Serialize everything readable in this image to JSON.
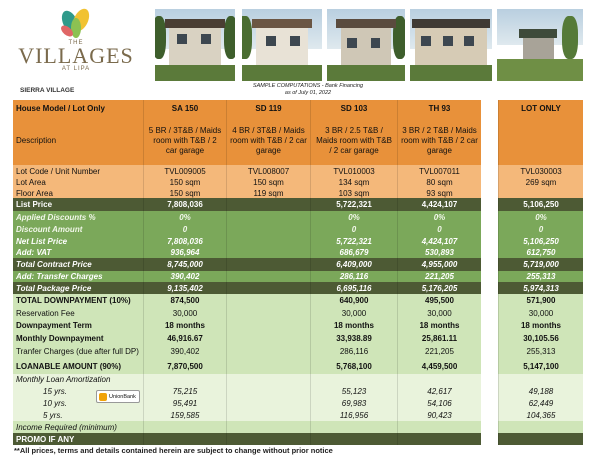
{
  "brand": {
    "the": "THE",
    "name": "VILLAGES",
    "location": "AT LIPA",
    "project": "SIERRA VILLAGE"
  },
  "subtitle": {
    "line1": "SAMPLE COMPUTATIONS - Bank Financing",
    "line2": "as of July 01, 2022"
  },
  "colors": {
    "header": "#e8913a",
    "light_orange": "#f4b87a",
    "green": "#7ba85a",
    "light_green": "#cfe5b8",
    "dark_olive": "#4d5a34",
    "pale": "#e9f3dc"
  },
  "columns": [
    "House Model / Lot Only",
    "SA 150",
    "SD 119",
    "SD 103",
    "TH 93",
    "LOT ONLY"
  ],
  "rows": [
    {
      "label": "Description",
      "values": [
        "5 BR / 3T&B / Maids room with T&B / 2 car garage",
        "4 BR / 3T&B / Maids room with T&B / 2 car garage",
        "3 BR / 2.5 T&B / Maids room with T&B / 2 car garage",
        "3 BR / 2 T&B / Maids room with T&B / 2 car garage",
        ""
      ]
    },
    {
      "label": "Lot Code / Unit Number",
      "values": [
        "TVL009005",
        "TVL008007",
        "TVL010003",
        "TVL007011",
        "TVL030003"
      ]
    },
    {
      "label": "Lot Area",
      "values": [
        "150 sqm",
        "150 sqm",
        "134 sqm",
        "80 sqm",
        "269 sqm"
      ]
    },
    {
      "label": "Floor Area",
      "values": [
        "150 sqm",
        "119 sqm",
        "103 sqm",
        "93 sqm",
        ""
      ]
    },
    {
      "label": "List Price",
      "values": [
        "7,808,036",
        "",
        "5,722,321",
        "4,424,107",
        "5,106,250"
      ]
    },
    {
      "label": "Applied Discounts %",
      "values": [
        "0%",
        "",
        "0%",
        "0%",
        "0%"
      ]
    },
    {
      "label": "Discount Amount",
      "values": [
        "0",
        "",
        "0",
        "0",
        "0"
      ]
    },
    {
      "label": "Net List Price",
      "values": [
        "7,808,036",
        "",
        "5,722,321",
        "4,424,107",
        "5,106,250"
      ]
    },
    {
      "label": "Add: VAT",
      "values": [
        "936,964",
        "",
        "686,679",
        "530,893",
        "612,750"
      ]
    },
    {
      "label": "Total Contract Price",
      "values": [
        "8,745,000",
        "",
        "6,409,000",
        "4,955,000",
        "5,719,000"
      ]
    },
    {
      "label": "Add: Transfer Charges",
      "values": [
        "390,402",
        "",
        "286,116",
        "221,205",
        "255,313"
      ]
    },
    {
      "label": "Total Package Price",
      "values": [
        "9,135,402",
        "",
        "6,695,116",
        "5,176,205",
        "5,974,313"
      ]
    },
    {
      "label": "TOTAL DOWNPAYMENT (10%)",
      "values": [
        "874,500",
        "",
        "640,900",
        "495,500",
        "571,900"
      ]
    },
    {
      "label": "Reservation Fee",
      "values": [
        "30,000",
        "",
        "30,000",
        "30,000",
        "30,000"
      ]
    },
    {
      "label": "Downpayment Term",
      "values": [
        "18 months",
        "",
        "18 months",
        "18 months",
        "18 months"
      ]
    },
    {
      "label": "Monthly Downpayment",
      "values": [
        "46,916.67",
        "",
        "33,938.89",
        "25,861.11",
        "30,105.56"
      ]
    },
    {
      "label": "Tranfer Charges (due after full DP)",
      "values": [
        "390,402",
        "",
        "286,116",
        "221,205",
        "255,313"
      ]
    },
    {
      "label": "LOANABLE AMOUNT (90%)",
      "values": [
        "7,870,500",
        "",
        "5,768,100",
        "4,459,500",
        "5,147,100"
      ]
    },
    {
      "label": "Monthly Loan Amortization",
      "values": [
        "",
        "",
        "",
        "",
        ""
      ]
    },
    {
      "label": "15 yrs.",
      "values": [
        "75,215",
        "",
        "55,123",
        "42,617",
        "49,188"
      ]
    },
    {
      "label": "10 yrs.",
      "values": [
        "95,491",
        "",
        "69,983",
        "54,106",
        "62,449"
      ]
    },
    {
      "label": "5 yrs.",
      "values": [
        "159,585",
        "",
        "116,956",
        "90,423",
        "104,365"
      ]
    },
    {
      "label": "Income Required (minimum)",
      "values": [
        "",
        "",
        "",
        "",
        ""
      ]
    },
    {
      "label": "PROMO IF ANY",
      "values": [
        "",
        "",
        "",
        "",
        ""
      ]
    }
  ],
  "bank_logo": "UnionBank",
  "footnote": "**All prices, terms and details contained herein are subject to change without prior notice"
}
